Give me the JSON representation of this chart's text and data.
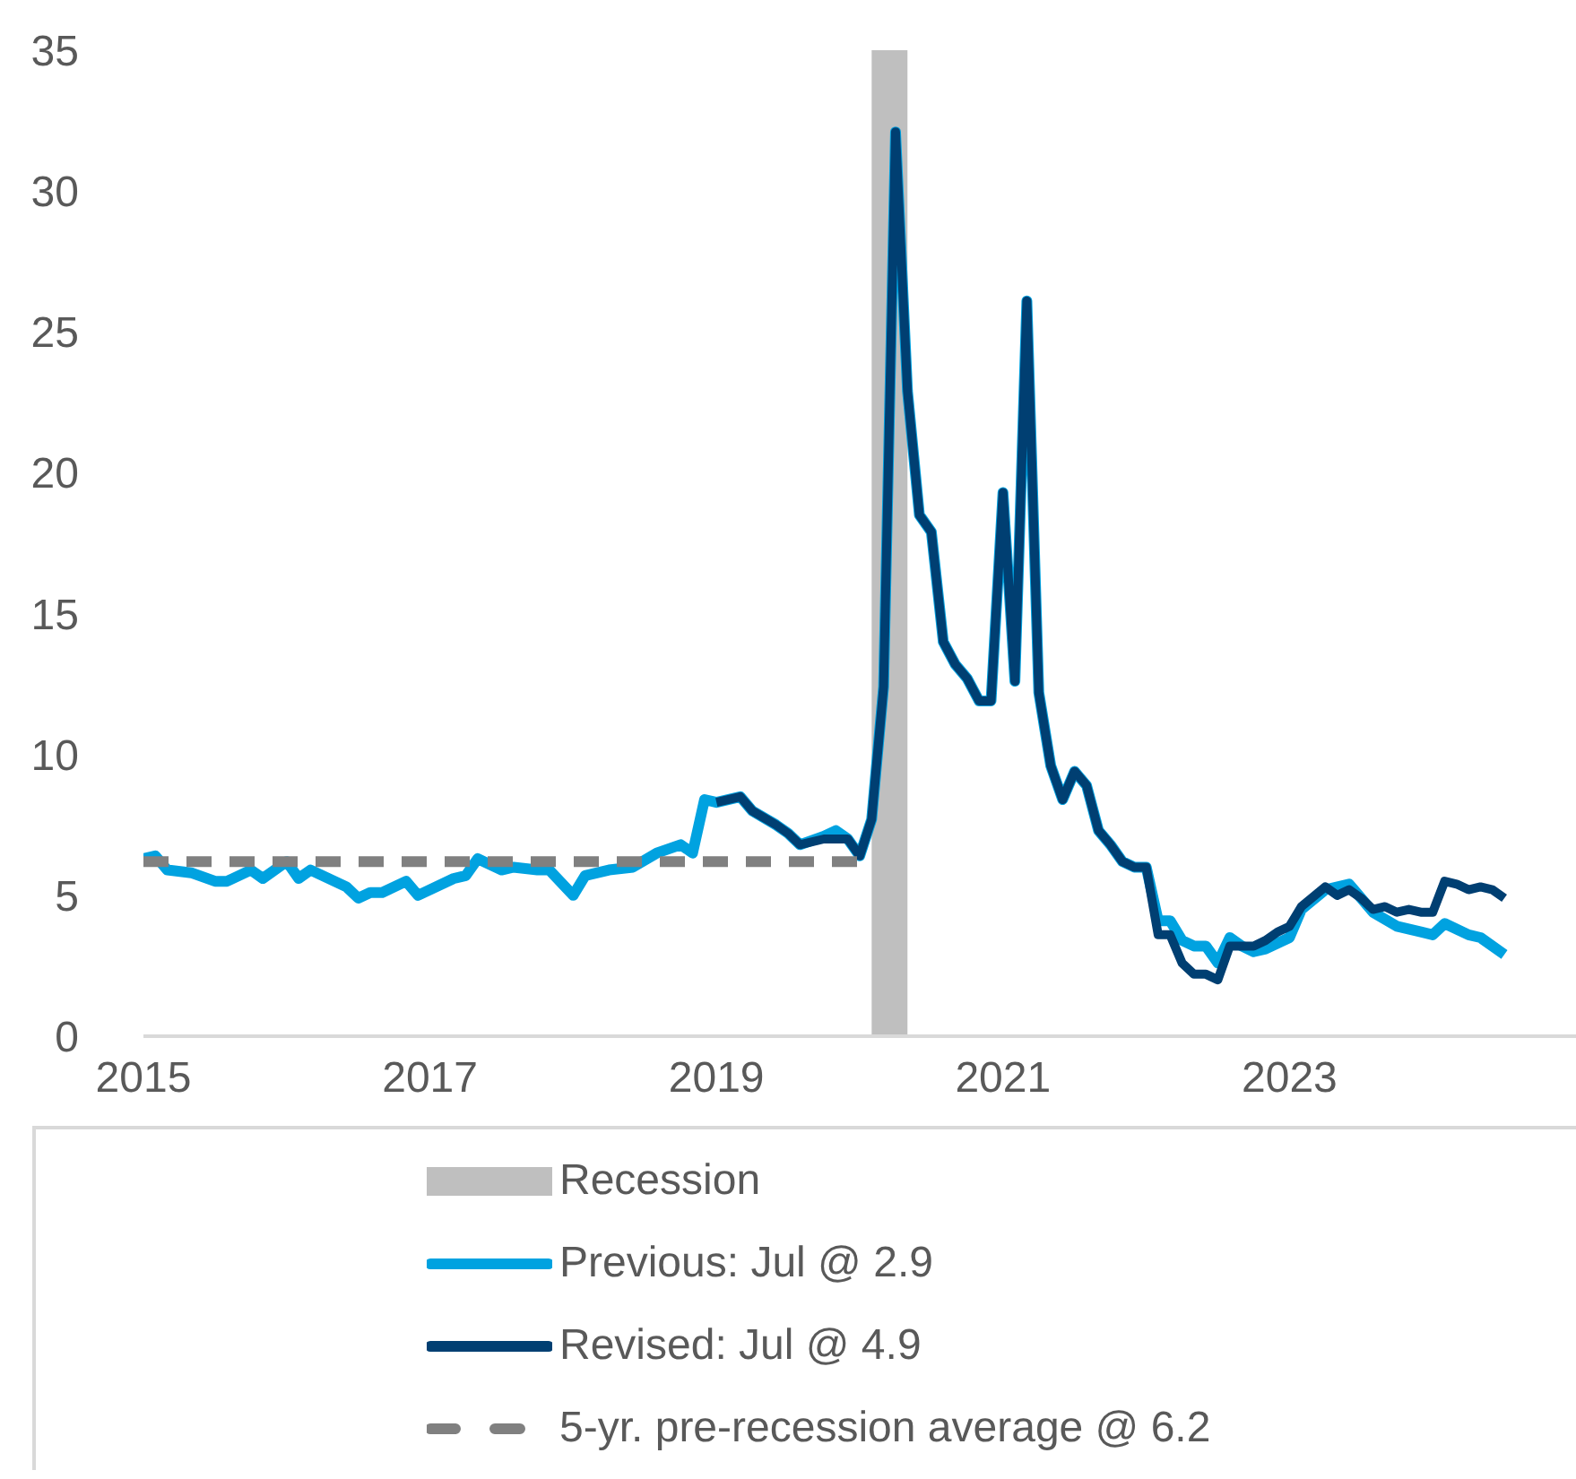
{
  "chart_data": {
    "type": "line",
    "xlim": [
      "2015-01",
      "2025-01"
    ],
    "xticks": [
      "2015",
      "2017",
      "2019",
      "2021",
      "2023"
    ],
    "ylim": [
      0,
      35
    ],
    "yticks": [
      0,
      5,
      10,
      15,
      20,
      25,
      30,
      35
    ],
    "legend": "bottom",
    "marker": "none",
    "bands": [
      {
        "axis": "x",
        "from": "2020-02",
        "to": "2020-05",
        "label": "Recession",
        "color": "#bfbfbf"
      }
    ],
    "series": [
      {
        "name": "Previous: Jul @ 2.9",
        "color": "#00a2e0",
        "line_style": "solid",
        "x": [
          "2015-01",
          "2015-02",
          "2015-03",
          "2015-05",
          "2015-07",
          "2015-08",
          "2015-10",
          "2015-11",
          "2016-01",
          "2016-02",
          "2016-03",
          "2016-05",
          "2016-06",
          "2016-07",
          "2016-08",
          "2016-09",
          "2016-11",
          "2016-12",
          "2017-03",
          "2017-04",
          "2017-05",
          "2017-07",
          "2017-08",
          "2017-10",
          "2017-11",
          "2018-01",
          "2018-02",
          "2018-04",
          "2018-06",
          "2018-08",
          "2018-10",
          "2018-11",
          "2018-12",
          "2019-01",
          "2019-03",
          "2019-04",
          "2019-06",
          "2019-07",
          "2019-08",
          "2019-10",
          "2019-11",
          "2019-12",
          "2020-01",
          "2020-02",
          "2020-03",
          "2020-04",
          "2020-05",
          "2020-06",
          "2020-07",
          "2020-08",
          "2020-09",
          "2020-10",
          "2020-11",
          "2020-12",
          "2021-01",
          "2021-02",
          "2021-03",
          "2021-04",
          "2021-05",
          "2021-06",
          "2021-07",
          "2021-08",
          "2021-09",
          "2021-10",
          "2021-11",
          "2021-12",
          "2022-01",
          "2022-02",
          "2022-03",
          "2022-04",
          "2022-05",
          "2022-06",
          "2022-07",
          "2022-08",
          "2022-09",
          "2022-10",
          "2022-11",
          "2022-12",
          "2023-01",
          "2023-02",
          "2023-04",
          "2023-06",
          "2023-08",
          "2023-10",
          "2023-12",
          "2024-01",
          "2024-02",
          "2024-04",
          "2024-05",
          "2024-07"
        ],
        "values": [
          6.3,
          6.4,
          5.9,
          5.8,
          5.5,
          5.5,
          5.9,
          5.6,
          6.2,
          5.6,
          5.9,
          5.5,
          5.3,
          4.9,
          5.1,
          5.1,
          5.5,
          5.0,
          5.6,
          5.7,
          6.3,
          5.9,
          6.0,
          5.9,
          5.9,
          5.0,
          5.7,
          5.9,
          6.0,
          6.5,
          6.8,
          6.5,
          8.4,
          8.3,
          8.5,
          8.0,
          7.5,
          7.2,
          6.8,
          7.1,
          7.3,
          7.0,
          6.4,
          7.7,
          12.4,
          32.1,
          22.9,
          18.5,
          17.9,
          14.0,
          13.2,
          12.7,
          11.9,
          11.9,
          19.3,
          12.6,
          26.1,
          12.2,
          9.6,
          8.4,
          9.4,
          8.9,
          7.3,
          6.8,
          6.2,
          6.0,
          6.0,
          4.1,
          4.1,
          3.4,
          3.2,
          3.2,
          2.6,
          3.5,
          3.2,
          3.0,
          3.1,
          3.3,
          3.5,
          4.5,
          5.2,
          5.4,
          4.4,
          3.9,
          3.7,
          3.6,
          4.0,
          3.6,
          3.5,
          2.9
        ]
      },
      {
        "name": "Revised: Jul @ 4.9",
        "color": "#003f72",
        "line_style": "solid",
        "x": [
          "2019-01",
          "2019-03",
          "2019-04",
          "2019-06",
          "2019-07",
          "2019-08",
          "2019-10",
          "2019-11",
          "2019-12",
          "2020-01",
          "2020-02",
          "2020-03",
          "2020-04",
          "2020-05",
          "2020-06",
          "2020-07",
          "2020-08",
          "2020-09",
          "2020-10",
          "2020-11",
          "2020-12",
          "2021-01",
          "2021-02",
          "2021-03",
          "2021-04",
          "2021-05",
          "2021-06",
          "2021-07",
          "2021-08",
          "2021-09",
          "2021-10",
          "2021-11",
          "2021-12",
          "2022-01",
          "2022-02",
          "2022-03",
          "2022-04",
          "2022-05",
          "2022-06",
          "2022-07",
          "2022-08",
          "2022-09",
          "2022-10",
          "2022-11",
          "2022-12",
          "2023-01",
          "2023-02",
          "2023-04",
          "2023-05",
          "2023-06",
          "2023-07",
          "2023-08",
          "2023-09",
          "2023-10",
          "2023-11",
          "2023-12",
          "2024-01",
          "2024-02",
          "2024-03",
          "2024-04",
          "2024-05",
          "2024-06",
          "2024-07"
        ],
        "values": [
          8.3,
          8.5,
          8.0,
          7.5,
          7.2,
          6.8,
          7.0,
          7.0,
          7.0,
          6.4,
          7.7,
          12.4,
          32.1,
          22.9,
          18.5,
          17.9,
          14.0,
          13.2,
          12.7,
          11.9,
          11.9,
          19.3,
          12.6,
          26.1,
          12.2,
          9.6,
          8.4,
          9.4,
          8.9,
          7.3,
          6.8,
          6.2,
          6.0,
          6.0,
          3.6,
          3.6,
          2.6,
          2.2,
          2.2,
          2.0,
          3.2,
          3.2,
          3.2,
          3.4,
          3.7,
          3.9,
          4.6,
          5.3,
          5.0,
          5.2,
          4.9,
          4.5,
          4.6,
          4.4,
          4.5,
          4.4,
          4.4,
          5.5,
          5.4,
          5.2,
          5.3,
          5.2,
          4.9
        ]
      },
      {
        "name": "5-yr. pre-recession average @ 6.2",
        "color": "#808080",
        "line_style": "dashed",
        "x": [
          "2015-01",
          "2020-01"
        ],
        "values": [
          6.2,
          6.2
        ]
      }
    ]
  }
}
